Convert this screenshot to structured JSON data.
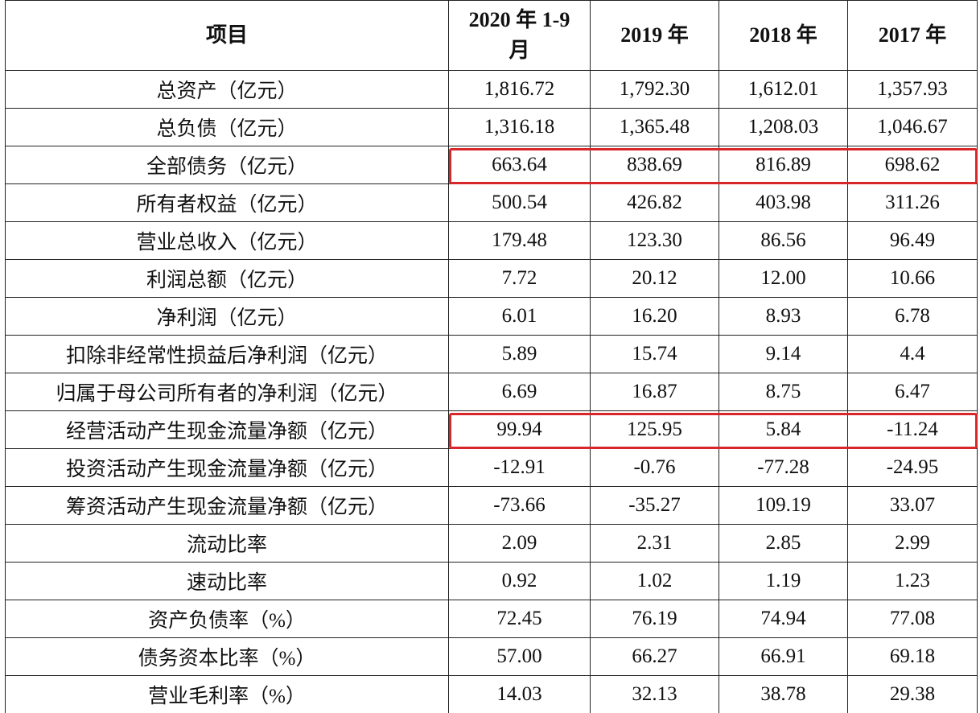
{
  "table": {
    "header": [
      "项目",
      "2020 年 1-9 月",
      "2019 年",
      "2018 年",
      "2017 年"
    ],
    "rows": [
      [
        "总资产（亿元）",
        "1,816.72",
        "1,792.30",
        "1,612.01",
        "1,357.93"
      ],
      [
        "总负债（亿元）",
        "1,316.18",
        "1,365.48",
        "1,208.03",
        "1,046.67"
      ],
      [
        "全部债务（亿元）",
        "663.64",
        "838.69",
        "816.89",
        "698.62"
      ],
      [
        "所有者权益（亿元）",
        "500.54",
        "426.82",
        "403.98",
        "311.26"
      ],
      [
        "营业总收入（亿元）",
        "179.48",
        "123.30",
        "86.56",
        "96.49"
      ],
      [
        "利润总额（亿元）",
        "7.72",
        "20.12",
        "12.00",
        "10.66"
      ],
      [
        "净利润（亿元）",
        "6.01",
        "16.20",
        "8.93",
        "6.78"
      ],
      [
        "扣除非经常性损益后净利润（亿元）",
        "5.89",
        "15.74",
        "9.14",
        "4.4"
      ],
      [
        "归属于母公司所有者的净利润（亿元）",
        "6.69",
        "16.87",
        "8.75",
        "6.47"
      ],
      [
        "经营活动产生现金流量净额（亿元）",
        "99.94",
        "125.95",
        "5.84",
        "-11.24"
      ],
      [
        "投资活动产生现金流量净额（亿元）",
        "-12.91",
        "-0.76",
        "-77.28",
        "-24.95"
      ],
      [
        "筹资活动产生现金流量净额（亿元）",
        "-73.66",
        "-35.27",
        "109.19",
        "33.07"
      ],
      [
        "流动比率",
        "2.09",
        "2.31",
        "2.85",
        "2.99"
      ],
      [
        "速动比率",
        "0.92",
        "1.02",
        "1.19",
        "1.23"
      ],
      [
        "资产负债率（%）",
        "72.45",
        "76.19",
        "74.94",
        "77.08"
      ],
      [
        "债务资本比率（%）",
        "57.00",
        "66.27",
        "66.91",
        "69.18"
      ],
      [
        "营业毛利率（%）",
        "14.03",
        "32.13",
        "38.78",
        "29.38"
      ]
    ]
  }
}
